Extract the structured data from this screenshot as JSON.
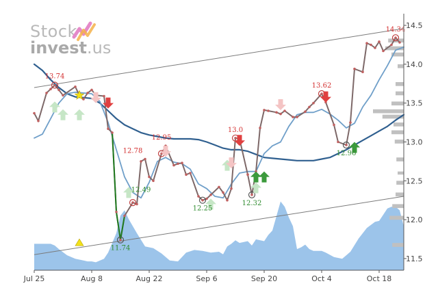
{
  "logo": {
    "line1": "Stock",
    "line2": "invest",
    "line2_suffix": ".us"
  },
  "colors": {
    "price": "#7d6868",
    "price_down_segment": "#1f7a1f",
    "ma_short": "#6f9fc9",
    "ma_long": "#2f5f8f",
    "volume": "#9cc4ea",
    "volume_profile": "#c0c0c0",
    "trend_line": "#7a7a7a",
    "buy_arrow": "#3c9a3c",
    "sell_arrow": "#e04040",
    "buy_arrow_faded": "#c6e6c6",
    "sell_arrow_faded": "#f4c4c4"
  },
  "chart_data": {
    "type": "line",
    "x_tick_labels": [
      "Jul 25",
      "Aug 8",
      "Aug 22",
      "Sep 6",
      "Sep 20",
      "Oct 4",
      "Oct 18"
    ],
    "x_tick_days": [
      0,
      14,
      28,
      42,
      56,
      70,
      84
    ],
    "x_range_days": [
      0,
      90
    ],
    "y_tick_labels": [
      "11.5",
      "12.0",
      "12.5",
      "13.0",
      "13.5",
      "14.0",
      "14.5"
    ],
    "y_ticks": [
      11.5,
      12.0,
      12.5,
      13.0,
      13.5,
      14.0,
      14.5
    ],
    "y_range": [
      11.35,
      14.65
    ],
    "grid": false,
    "price": {
      "x_days": [
        0,
        1,
        3,
        4,
        5,
        6,
        7,
        10,
        11,
        12,
        13,
        14,
        15,
        17,
        18,
        19,
        20,
        21,
        22,
        24,
        25,
        26,
        27,
        28,
        29,
        31,
        32,
        34,
        35,
        36,
        37,
        38,
        40,
        41,
        42,
        43,
        45,
        46,
        47,
        48,
        49,
        50,
        52,
        53,
        54,
        55,
        56,
        57,
        59,
        60,
        61,
        63,
        64,
        66,
        67,
        68,
        70,
        71,
        73,
        74,
        76,
        77,
        78,
        80,
        81,
        82,
        83,
        84,
        85,
        87,
        88,
        89
      ],
      "values": [
        13.37,
        13.27,
        13.63,
        13.68,
        13.73,
        13.67,
        13.6,
        13.71,
        13.6,
        13.55,
        13.63,
        13.67,
        13.6,
        13.59,
        13.17,
        13.12,
        12.1,
        11.74,
        12.05,
        12.22,
        12.2,
        12.75,
        12.78,
        12.55,
        12.5,
        12.85,
        12.95,
        12.7,
        12.72,
        12.73,
        12.58,
        12.6,
        12.3,
        12.25,
        12.27,
        12.32,
        12.42,
        12.35,
        12.25,
        12.4,
        13.05,
        13.04,
        12.58,
        12.32,
        12.62,
        13.18,
        13.41,
        13.4,
        13.38,
        13.36,
        13.4,
        13.32,
        13.32,
        13.39,
        13.45,
        13.5,
        13.62,
        13.51,
        13.22,
        13.0,
        12.96,
        13.25,
        13.94,
        13.9,
        14.27,
        14.25,
        14.21,
        14.29,
        14.17,
        14.25,
        14.34,
        14.28
      ],
      "down_segment_days": [
        20,
        21,
        22
      ],
      "circled_points_days": [
        5,
        21,
        24,
        31,
        41,
        49,
        53,
        70,
        76,
        88
      ]
    },
    "ma_short": {
      "x_days": [
        0,
        2,
        4,
        6,
        8,
        10,
        12,
        14,
        16,
        18,
        20,
        22,
        24,
        26,
        28,
        30,
        32,
        34,
        36,
        38,
        40,
        42,
        44,
        46,
        48,
        50,
        52,
        54,
        56,
        58,
        60,
        62,
        64,
        66,
        68,
        70,
        72,
        74,
        76,
        78,
        80,
        82,
        84,
        86,
        88,
        90
      ],
      "values": [
        13.05,
        13.1,
        13.3,
        13.5,
        13.62,
        13.64,
        13.63,
        13.62,
        13.52,
        13.25,
        12.9,
        12.55,
        12.35,
        12.28,
        12.48,
        12.75,
        12.8,
        12.74,
        12.72,
        12.65,
        12.46,
        12.4,
        12.3,
        12.28,
        12.46,
        12.6,
        12.62,
        12.62,
        12.85,
        12.95,
        13.0,
        13.2,
        13.35,
        13.38,
        13.38,
        13.42,
        13.36,
        13.28,
        13.18,
        13.24,
        13.45,
        13.6,
        13.8,
        13.98,
        14.18,
        14.22
      ]
    },
    "ma_long": {
      "x_days": [
        0,
        2,
        4,
        6,
        8,
        10,
        12,
        14,
        16,
        18,
        20,
        22,
        24,
        26,
        28,
        30,
        32,
        34,
        36,
        38,
        40,
        42,
        44,
        46,
        48,
        50,
        52,
        54,
        56,
        58,
        60,
        62,
        64,
        66,
        68,
        70,
        72,
        74,
        76,
        78,
        80,
        82,
        84,
        86,
        88,
        90
      ],
      "values": [
        14.0,
        13.92,
        13.8,
        13.7,
        13.62,
        13.58,
        13.57,
        13.56,
        13.5,
        13.4,
        13.3,
        13.22,
        13.17,
        13.12,
        13.09,
        13.07,
        13.05,
        13.04,
        13.04,
        13.04,
        13.03,
        13.0,
        12.96,
        12.92,
        12.9,
        12.9,
        12.88,
        12.84,
        12.8,
        12.79,
        12.78,
        12.77,
        12.76,
        12.76,
        12.76,
        12.78,
        12.8,
        12.85,
        12.9,
        12.96,
        13.02,
        13.08,
        13.14,
        13.2,
        13.28,
        13.35
      ]
    },
    "trend_upper": {
      "x_days": [
        0,
        90
      ],
      "values": [
        13.7,
        14.46
      ]
    },
    "trend_lower": {
      "x_days": [
        0,
        90
      ],
      "values": [
        11.55,
        12.3
      ]
    },
    "volume_relative": {
      "x_days": [
        0,
        2,
        4,
        5,
        6,
        8,
        10,
        12,
        13,
        14,
        15,
        17,
        18,
        20,
        21,
        22,
        23,
        25,
        27,
        29,
        31,
        33,
        35,
        37,
        39,
        41,
        43,
        45,
        46,
        47,
        48,
        49,
        50,
        52,
        53,
        54,
        56,
        57,
        58,
        60,
        61,
        62,
        63,
        64,
        65,
        66,
        67,
        68,
        70,
        71,
        73,
        75,
        77,
        79,
        81,
        83,
        84,
        85,
        86,
        87,
        88,
        89,
        90
      ],
      "values": [
        0.3,
        0.3,
        0.3,
        0.28,
        0.24,
        0.17,
        0.13,
        0.11,
        0.1,
        0.1,
        0.09,
        0.13,
        0.2,
        0.42,
        0.62,
        0.68,
        0.58,
        0.42,
        0.27,
        0.25,
        0.19,
        0.11,
        0.1,
        0.2,
        0.23,
        0.22,
        0.2,
        0.21,
        0.18,
        0.27,
        0.3,
        0.34,
        0.31,
        0.33,
        0.28,
        0.35,
        0.33,
        0.4,
        0.45,
        0.78,
        0.72,
        0.6,
        0.5,
        0.24,
        0.26,
        0.29,
        0.24,
        0.22,
        0.22,
        0.2,
        0.15,
        0.13,
        0.21,
        0.36,
        0.48,
        0.55,
        0.56,
        0.63,
        0.7,
        0.72,
        0.72,
        0.68,
        0.5
      ]
    },
    "volume_profile": [
      {
        "y_low": 11.65,
        "y_high": 11.7,
        "rel": 0.28
      },
      {
        "y_low": 12.0,
        "y_high": 12.05,
        "rel": 0.35
      },
      {
        "y_low": 12.15,
        "y_high": 12.2,
        "rel": 0.28
      },
      {
        "y_low": 12.3,
        "y_high": 12.35,
        "rel": 0.2
      },
      {
        "y_low": 12.45,
        "y_high": 12.5,
        "rel": 0.18
      },
      {
        "y_low": 12.58,
        "y_high": 12.62,
        "rel": 0.15
      },
      {
        "y_low": 12.75,
        "y_high": 12.8,
        "rel": 0.18
      },
      {
        "y_low": 12.98,
        "y_high": 13.03,
        "rel": 0.22
      },
      {
        "y_low": 13.1,
        "y_high": 13.15,
        "rel": 0.3
      },
      {
        "y_low": 13.2,
        "y_high": 13.25,
        "rel": 0.25
      },
      {
        "y_low": 13.3,
        "y_high": 13.35,
        "rel": 0.52
      },
      {
        "y_low": 13.37,
        "y_high": 13.42,
        "rel": 0.75
      },
      {
        "y_low": 13.47,
        "y_high": 13.52,
        "rel": 0.3
      },
      {
        "y_low": 13.6,
        "y_high": 13.65,
        "rel": 0.2
      },
      {
        "y_low": 13.72,
        "y_high": 13.77,
        "rel": 0.2
      },
      {
        "y_low": 13.95,
        "y_high": 14.0,
        "rel": 0.15
      },
      {
        "y_low": 14.1,
        "y_high": 14.15,
        "rel": 0.3
      },
      {
        "y_low": 14.18,
        "y_high": 14.23,
        "rel": 0.45
      },
      {
        "y_low": 14.28,
        "y_high": 14.33,
        "rel": 0.38
      }
    ],
    "price_labels": [
      {
        "day": 5,
        "value": 13.74,
        "text": "13.74",
        "kind": "red"
      },
      {
        "day": 21,
        "value": 11.74,
        "text": "11.74",
        "kind": "green"
      },
      {
        "day": 24,
        "value": 12.78,
        "text": "12.78",
        "kind": "red"
      },
      {
        "day": 26,
        "value": 12.49,
        "text": "12.49",
        "kind": "green"
      },
      {
        "day": 31,
        "value": 12.95,
        "text": "12.95",
        "kind": "red"
      },
      {
        "day": 41,
        "value": 12.25,
        "text": "12.25",
        "kind": "green"
      },
      {
        "day": 49,
        "value": 13.05,
        "text": "13.0",
        "kind": "red"
      },
      {
        "day": 53,
        "value": 12.32,
        "text": "12.32",
        "kind": "green"
      },
      {
        "day": 70,
        "value": 13.62,
        "text": "13.62",
        "kind": "red"
      },
      {
        "day": 76,
        "value": 12.96,
        "text": "12.96",
        "kind": "green"
      },
      {
        "day": 88,
        "value": 14.34,
        "text": "14.34",
        "kind": "red"
      }
    ],
    "signals": [
      {
        "day": 5,
        "value": 13.45,
        "dir": "up",
        "strength": "faded"
      },
      {
        "day": 7,
        "value": 13.35,
        "dir": "up",
        "strength": "faded"
      },
      {
        "day": 11,
        "value": 13.35,
        "dir": "up",
        "strength": "faded"
      },
      {
        "day": 15,
        "value": 13.57,
        "dir": "down",
        "strength": "faded"
      },
      {
        "day": 18,
        "value": 13.5,
        "dir": "down",
        "strength": "strong"
      },
      {
        "day": 23,
        "value": 12.35,
        "dir": "up",
        "strength": "faded"
      },
      {
        "day": 32,
        "value": 12.88,
        "dir": "down",
        "strength": "faded"
      },
      {
        "day": 43,
        "value": 12.2,
        "dir": "up",
        "strength": "faded"
      },
      {
        "day": 47,
        "value": 12.7,
        "dir": "up",
        "strength": "faded"
      },
      {
        "day": 48,
        "value": 12.73,
        "dir": "down",
        "strength": "faded"
      },
      {
        "day": 50,
        "value": 13.02,
        "dir": "down",
        "strength": "strong"
      },
      {
        "day": 54,
        "value": 12.41,
        "dir": "up",
        "strength": "faded"
      },
      {
        "day": 54,
        "value": 12.55,
        "dir": "up",
        "strength": "strong"
      },
      {
        "day": 56,
        "value": 12.55,
        "dir": "up",
        "strength": "strong"
      },
      {
        "day": 60,
        "value": 13.48,
        "dir": "down",
        "strength": "faded"
      },
      {
        "day": 71,
        "value": 13.58,
        "dir": "down",
        "strength": "strong"
      },
      {
        "day": 78,
        "value": 12.93,
        "dir": "up",
        "strength": "strong"
      }
    ],
    "stars": [
      {
        "day": 11,
        "value": 13.6,
        "color": "#f2e21a",
        "shape": "star"
      },
      {
        "day": 11,
        "value": 11.7,
        "color": "#f2e21a",
        "shape": "triangle"
      }
    ]
  }
}
